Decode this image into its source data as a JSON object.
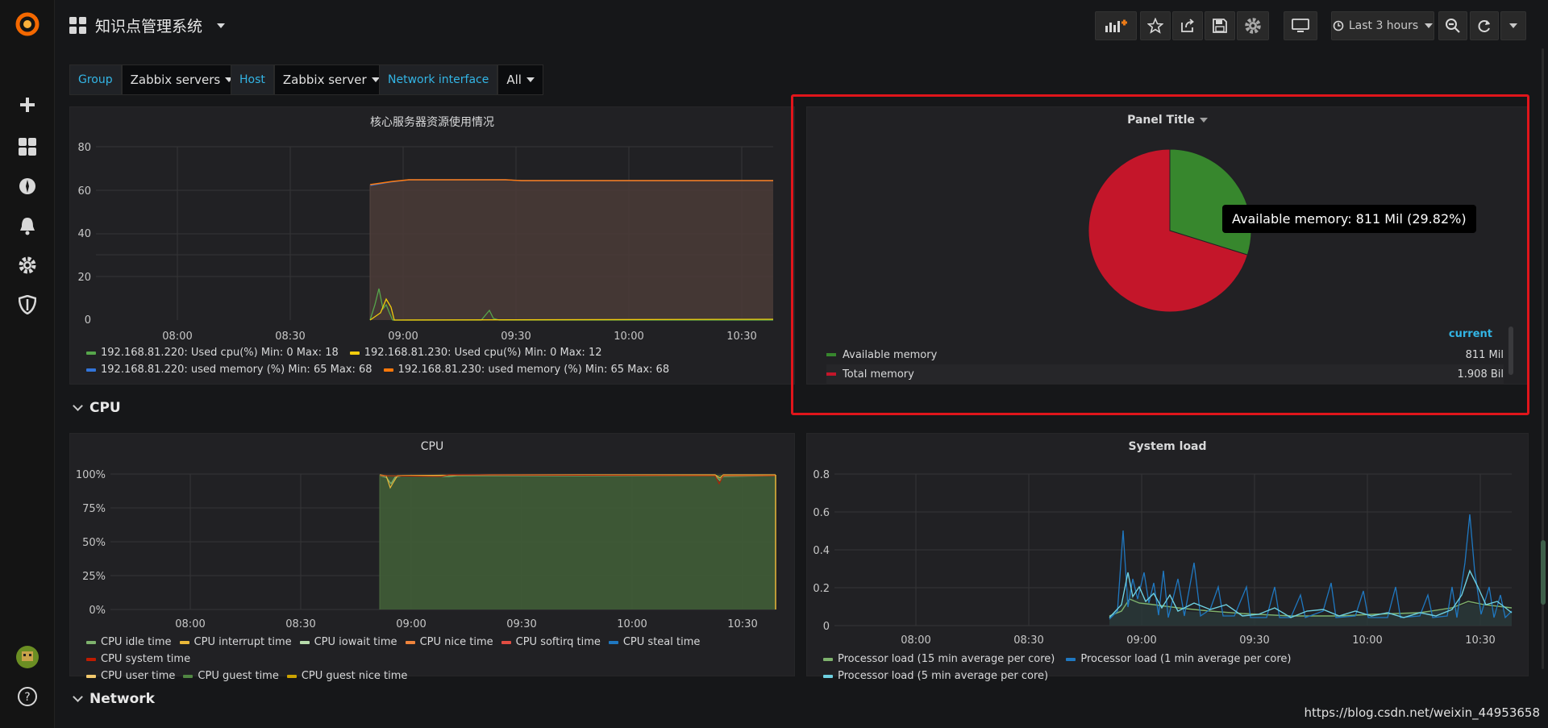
{
  "topbar": {
    "dashboard_title": "知识点管理系统",
    "time_range_label": "Last 3 hours"
  },
  "variables": [
    {
      "label": "Group",
      "value": "Zabbix servers"
    },
    {
      "label": "Host",
      "value": "Zabbix server"
    },
    {
      "label": "Network interface",
      "value": "All"
    }
  ],
  "panel_top_left": {
    "title": "核心服务器资源使用情况",
    "chart_data": {
      "type": "line",
      "title": "核心服务器资源使用情况",
      "x_ticks": [
        "08:00",
        "08:30",
        "09:00",
        "09:30",
        "10:00",
        "10:30"
      ],
      "y_ticks": [
        "0",
        "20",
        "40",
        "60",
        "80"
      ],
      "ylim": [
        0,
        80
      ],
      "legend": [
        {
          "text": "192.168.81.220: Used cpu(%)  Min: 0  Max: 18",
          "color": "#56a64b"
        },
        {
          "text": "192.168.81.230: Used cpu(%)  Min: 0  Max: 12",
          "color": "#f2cc0c"
        },
        {
          "text": "192.168.81.220: used memory (%)  Min: 65  Max: 68",
          "color": "#3274d9"
        },
        {
          "text": "192.168.81.230: used memory (%)  Min: 65  Max: 68",
          "color": "#ff780a"
        }
      ]
    }
  },
  "panel_pie": {
    "title": "Panel Title",
    "legend_header": "current",
    "tooltip": "Available memory: 811 Mil (29.82%)",
    "chart_data": {
      "type": "pie",
      "slices": [
        {
          "name": "Available memory",
          "value": 29.82,
          "color": "#37872d"
        },
        {
          "name": "Total memory",
          "value": 70.18,
          "color": "#c4162a"
        }
      ]
    },
    "legend": [
      {
        "name": "Available memory",
        "value": "811 Mil",
        "color": "#37872d"
      },
      {
        "name": "Total memory",
        "value": "1.908 Bil",
        "color": "#c4162a"
      }
    ]
  },
  "rows": {
    "cpu": "CPU",
    "network": "Network"
  },
  "panel_cpu": {
    "title": "CPU",
    "chart_data": {
      "type": "area",
      "x_ticks": [
        "08:00",
        "08:30",
        "09:00",
        "09:30",
        "10:00",
        "10:30"
      ],
      "y_ticks": [
        "0%",
        "25%",
        "50%",
        "75%",
        "100%"
      ],
      "ylim": [
        0,
        100
      ],
      "legend": [
        {
          "text": "CPU idle time",
          "color": "#7eb26d"
        },
        {
          "text": "CPU interrupt time",
          "color": "#eab839"
        },
        {
          "text": "CPU iowait time",
          "color": "#b7dbab"
        },
        {
          "text": "CPU nice time",
          "color": "#ef843c"
        },
        {
          "text": "CPU softirq time",
          "color": "#e24d42"
        },
        {
          "text": "CPU steal time",
          "color": "#1f78c1"
        },
        {
          "text": "CPU system time",
          "color": "#bf1b00"
        },
        {
          "text": "CPU user time",
          "color": "#f2c96d"
        },
        {
          "text": "CPU guest time",
          "color": "#508642"
        },
        {
          "text": "CPU guest nice time",
          "color": "#cca300"
        }
      ]
    }
  },
  "panel_load": {
    "title": "System load",
    "chart_data": {
      "type": "line",
      "x_ticks": [
        "08:00",
        "08:30",
        "09:00",
        "09:30",
        "10:00",
        "10:30"
      ],
      "y_ticks": [
        "0",
        "0.2",
        "0.4",
        "0.6",
        "0.8"
      ],
      "ylim": [
        0,
        0.8
      ],
      "legend": [
        {
          "text": "Processor load (15 min average per core)",
          "color": "#7eb26d"
        },
        {
          "text": "Processor load (1 min average per core)",
          "color": "#1f78c1"
        },
        {
          "text": "Processor load (5 min average per core)",
          "color": "#6ed0e0"
        }
      ]
    }
  },
  "watermark": "https://blog.csdn.net/weixin_44953658"
}
